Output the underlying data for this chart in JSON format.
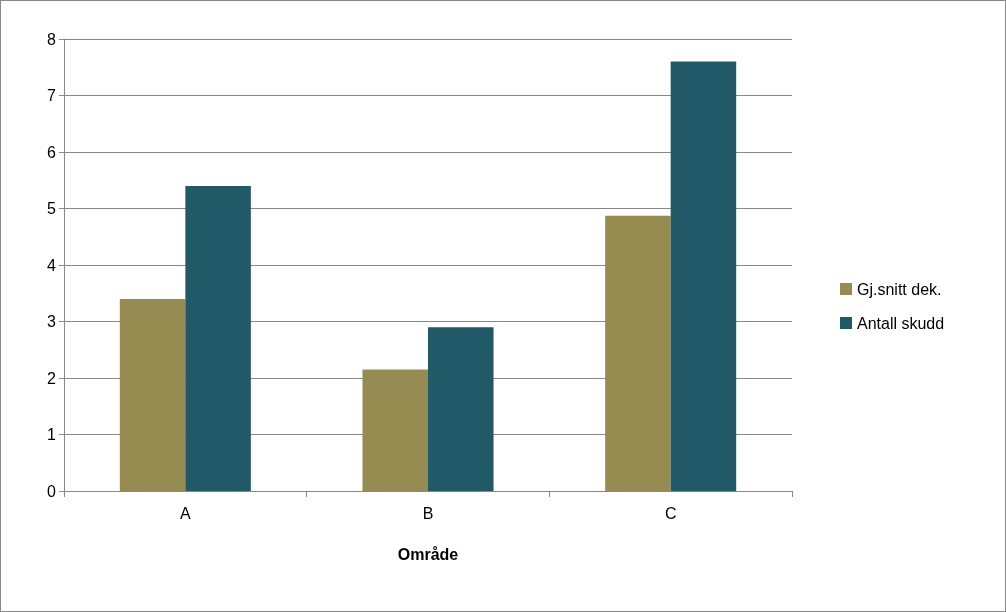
{
  "chart_data": {
    "type": "bar",
    "xlabel": "Område",
    "categories": [
      "A",
      "B",
      "C"
    ],
    "series": [
      {
        "name": "Gj.snitt dek.",
        "color": "#968c52",
        "values": [
          3.4,
          2.15,
          4.87
        ]
      },
      {
        "name": "Antall skudd",
        "color": "#215968",
        "values": [
          5.4,
          2.9,
          7.6
        ]
      }
    ],
    "ylim": [
      0,
      8
    ],
    "yticks": [
      0,
      1,
      2,
      3,
      4,
      5,
      6,
      7,
      8
    ],
    "grid": "y",
    "legend": "right"
  }
}
